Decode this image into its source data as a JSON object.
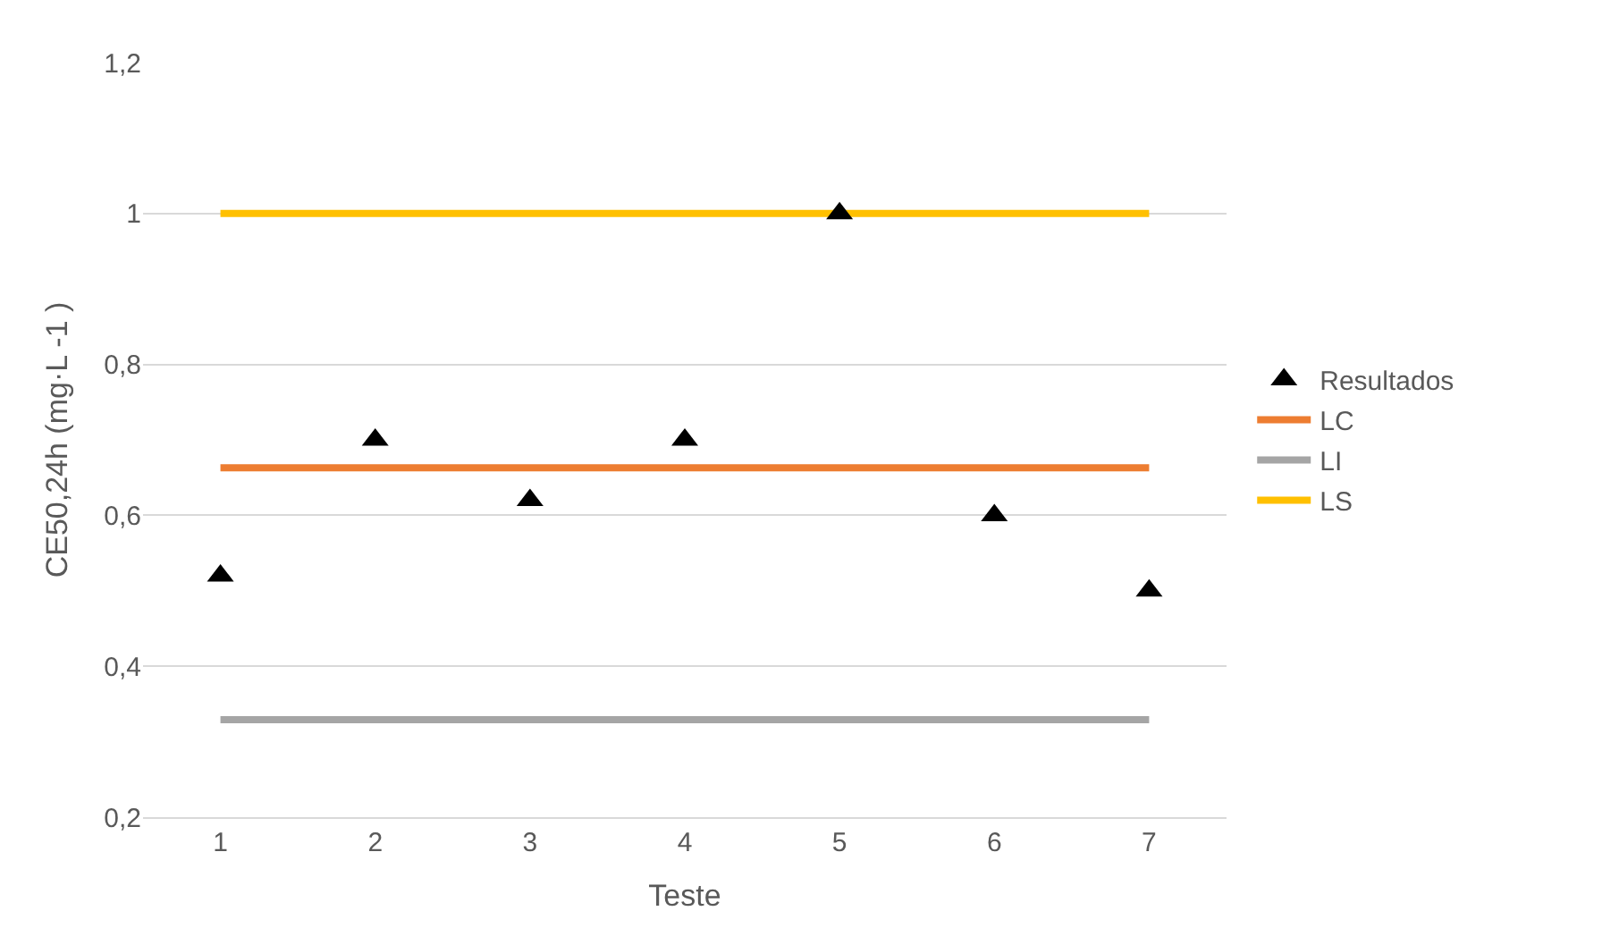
{
  "chart_data": {
    "type": "scatter",
    "xlabel": "Teste",
    "ylabel": "CE50,24h (mg·L -1 )",
    "categories": [
      "1",
      "2",
      "3",
      "4",
      "5",
      "6",
      "7"
    ],
    "series": [
      {
        "name": "Resultados",
        "color": "#000000",
        "marker": "triangle",
        "values": [
          0.52,
          0.7,
          0.62,
          0.7,
          1.0,
          0.6,
          0.5
        ]
      },
      {
        "name": "LC",
        "type": "line",
        "color": "#ed7d31",
        "marker": "none",
        "values": [
          0.663,
          0.663,
          0.663,
          0.663,
          0.663,
          0.663,
          0.663
        ]
      },
      {
        "name": "LI",
        "type": "line",
        "color": "#a5a5a5",
        "marker": "none",
        "values": [
          0.329,
          0.329,
          0.329,
          0.329,
          0.329,
          0.329,
          0.329
        ]
      },
      {
        "name": "LS",
        "type": "line",
        "color": "#ffc000",
        "marker": "none",
        "values": [
          1.0,
          1.0,
          1.0,
          1.0,
          1.0,
          1.0,
          1.0
        ]
      }
    ],
    "ylim": [
      0.2,
      1.2
    ],
    "yticks": [
      {
        "value": 0.2,
        "label": "0,2"
      },
      {
        "value": 0.4,
        "label": "0,4"
      },
      {
        "value": 0.6,
        "label": "0,6"
      },
      {
        "value": 0.8,
        "label": "0,8"
      },
      {
        "value": 1.0,
        "label": "1"
      },
      {
        "value": 1.2,
        "label": "1,2"
      }
    ],
    "grid": "y",
    "legend": "right"
  }
}
